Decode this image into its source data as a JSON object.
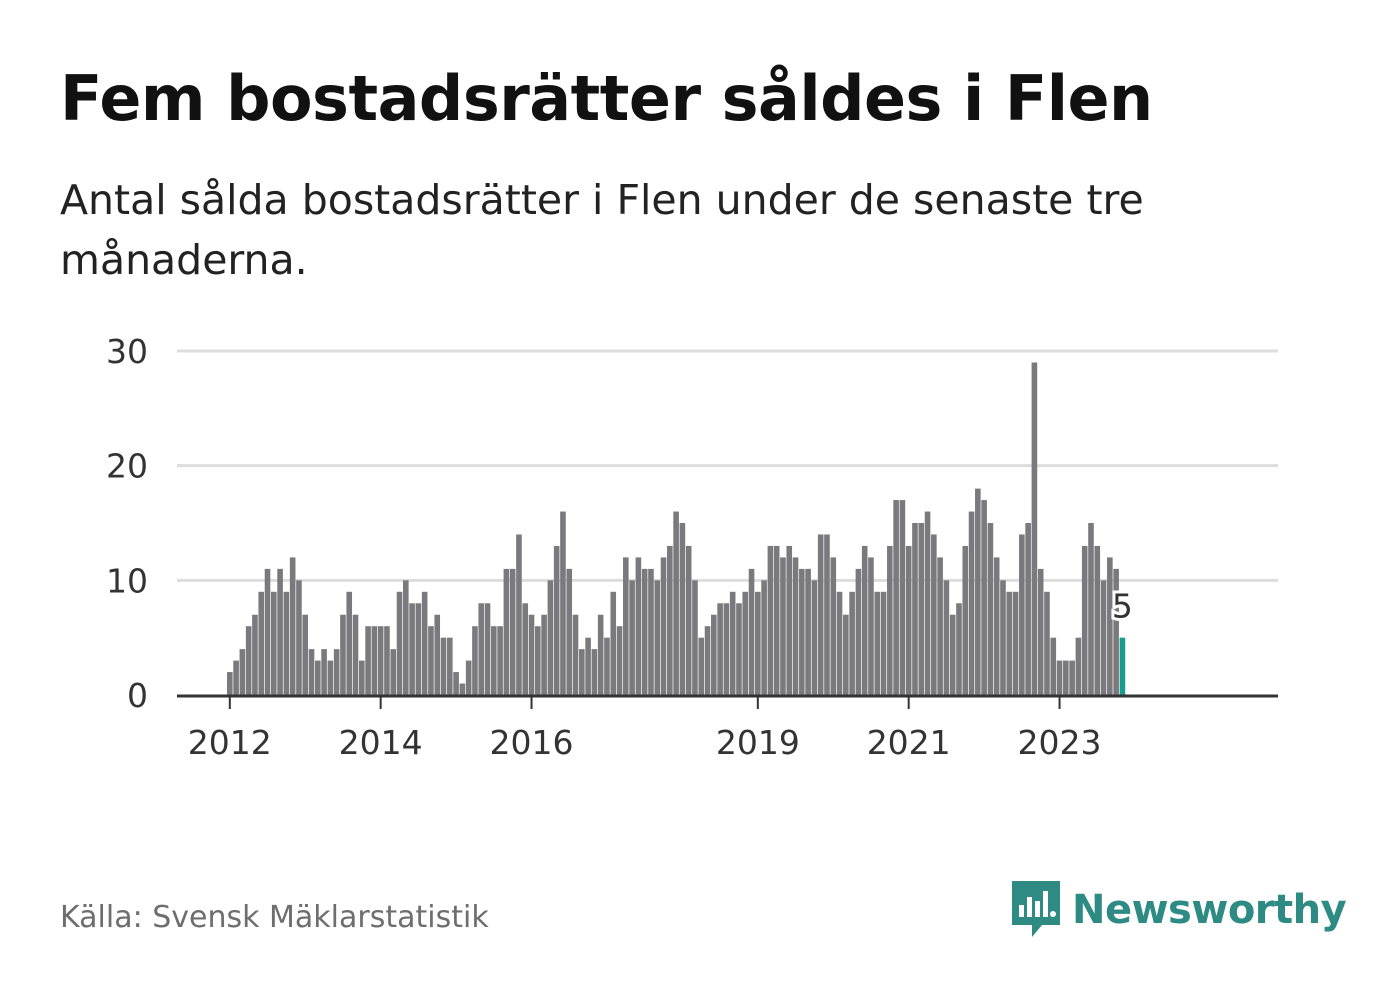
{
  "title": "Fem bostadsrätter såldes i Flen",
  "subtitle": "Antal sålda bostadsrätter i Flen under de senaste tre månaderna.",
  "source": "Källa: Svensk Mäklarstatistik",
  "brand": {
    "name": "Newsworthy",
    "icon": "newsworthy-logo-icon",
    "color": "#2d8b83"
  },
  "colors": {
    "bars": "#7a7a7e",
    "highlight": "#1a9c8f",
    "grid": "#dddddd",
    "axis": "#333333"
  },
  "chart_data": {
    "type": "bar",
    "title": "",
    "xlabel": "",
    "ylabel": "",
    "ylim": [
      0,
      30
    ],
    "yticks": [
      0,
      10,
      20,
      30
    ],
    "grid": true,
    "start": "2012-01",
    "xtick_labels": [
      {
        "label": "2012",
        "month": "2012-01"
      },
      {
        "label": "2014",
        "month": "2014-01"
      },
      {
        "label": "2016",
        "month": "2016-01"
      },
      {
        "label": "2019",
        "month": "2019-01"
      },
      {
        "label": "2021",
        "month": "2021-01"
      },
      {
        "label": "2023",
        "month": "2023-01"
      }
    ],
    "values": [
      2,
      3,
      4,
      6,
      7,
      9,
      11,
      9,
      11,
      9,
      12,
      10,
      7,
      4,
      3,
      4,
      3,
      4,
      7,
      9,
      7,
      3,
      6,
      6,
      6,
      6,
      4,
      9,
      10,
      8,
      8,
      9,
      6,
      7,
      5,
      5,
      2,
      1,
      3,
      6,
      8,
      8,
      6,
      6,
      11,
      11,
      14,
      8,
      7,
      6,
      7,
      10,
      13,
      16,
      11,
      7,
      4,
      5,
      4,
      7,
      5,
      9,
      6,
      12,
      10,
      12,
      11,
      11,
      10,
      12,
      13,
      16,
      15,
      13,
      10,
      5,
      6,
      7,
      8,
      8,
      9,
      8,
      9,
      11,
      9,
      10,
      13,
      13,
      12,
      13,
      12,
      11,
      11,
      10,
      14,
      14,
      12,
      9,
      7,
      9,
      11,
      13,
      12,
      9,
      9,
      13,
      17,
      17,
      13,
      15,
      15,
      16,
      14,
      12,
      10,
      7,
      8,
      13,
      16,
      18,
      17,
      15,
      12,
      10,
      9,
      9,
      14,
      15,
      29,
      11,
      9,
      5,
      3,
      3,
      3,
      5,
      13,
      15,
      13,
      10,
      12,
      11,
      5
    ],
    "highlight_last": true,
    "last_label": "5"
  }
}
